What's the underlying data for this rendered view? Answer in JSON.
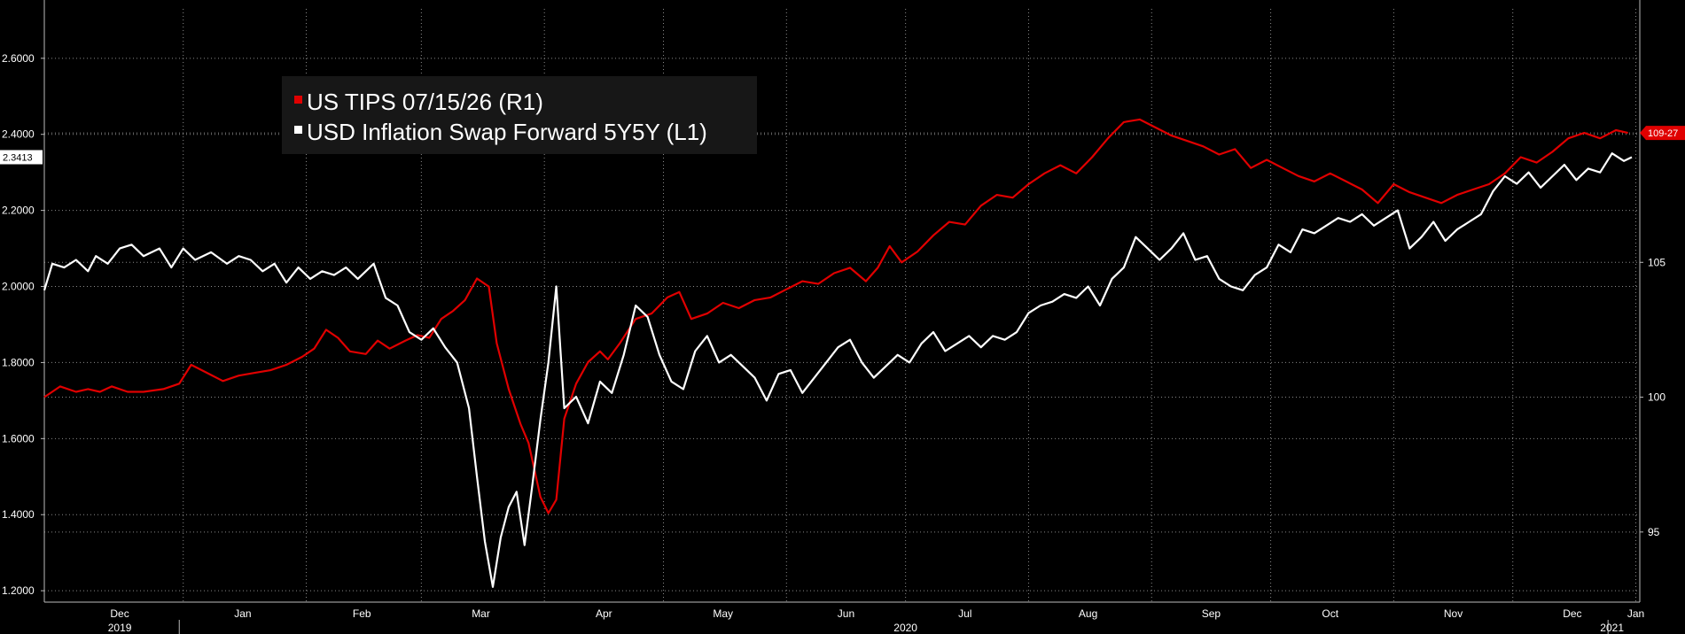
{
  "chart_data": {
    "type": "line",
    "title": "",
    "legend": {
      "placement": "top-left"
    },
    "grid": true,
    "x_range": [
      "2019-11-27",
      "2021-01-02"
    ],
    "left_axis": {
      "ticks": [
        "1.2000",
        "1.4000",
        "1.6000",
        "1.8000",
        "2.0000",
        "2.2000",
        "2.4000",
        "2.6000"
      ],
      "tick_values": [
        1.2,
        1.4,
        1.6,
        1.8,
        2.0,
        2.2,
        2.4,
        2.6
      ],
      "range": [
        1.17,
        2.73
      ],
      "last_value_tag": "2.3413"
    },
    "right_axis": {
      "ticks": [
        "95",
        "100",
        "105"
      ],
      "tick_values": [
        95,
        100,
        105
      ],
      "range": [
        92.4,
        114.4
      ],
      "last_value_tag": "109-27"
    },
    "x_axis": {
      "months": [
        {
          "label": "Dec",
          "date": "2019-12-16"
        },
        {
          "label": "Jan",
          "date": "2020-01-16"
        },
        {
          "label": "Feb",
          "date": "2020-02-15"
        },
        {
          "label": "Mar",
          "date": "2020-03-16"
        },
        {
          "label": "Apr",
          "date": "2020-04-16"
        },
        {
          "label": "May",
          "date": "2020-05-16"
        },
        {
          "label": "Jun",
          "date": "2020-06-16"
        },
        {
          "label": "Jul",
          "date": "2020-07-16"
        },
        {
          "label": "Aug",
          "date": "2020-08-16"
        },
        {
          "label": "Sep",
          "date": "2020-09-16"
        },
        {
          "label": "Oct",
          "date": "2020-10-16"
        },
        {
          "label": "Nov",
          "date": "2020-11-16"
        },
        {
          "label": "Dec",
          "date": "2020-12-16"
        },
        {
          "label": "Jan",
          "date": "2021-01-01"
        }
      ],
      "years": [
        {
          "label": "2019",
          "date": "2019-12-16"
        },
        {
          "label": "2020",
          "date": "2020-07-01"
        },
        {
          "label": "2021",
          "date": "2020-12-26"
        }
      ]
    },
    "series": [
      {
        "name": "US TIPS 07/15/26 (R1)",
        "axis": "right",
        "color": "#e00000",
        "points": [
          [
            "2019-11-27",
            100.0
          ],
          [
            "2019-12-01",
            100.4
          ],
          [
            "2019-12-05",
            100.2
          ],
          [
            "2019-12-08",
            100.3
          ],
          [
            "2019-12-11",
            100.2
          ],
          [
            "2019-12-14",
            100.4
          ],
          [
            "2019-12-18",
            100.2
          ],
          [
            "2019-12-22",
            100.2
          ],
          [
            "2019-12-27",
            100.3
          ],
          [
            "2019-12-31",
            100.5
          ],
          [
            "2020-01-03",
            101.2
          ],
          [
            "2020-01-07",
            100.9
          ],
          [
            "2020-01-11",
            100.6
          ],
          [
            "2020-01-15",
            100.8
          ],
          [
            "2020-01-19",
            100.9
          ],
          [
            "2020-01-23",
            101.0
          ],
          [
            "2020-01-27",
            101.2
          ],
          [
            "2020-01-31",
            101.5
          ],
          [
            "2020-02-03",
            101.8
          ],
          [
            "2020-02-06",
            102.5
          ],
          [
            "2020-02-09",
            102.2
          ],
          [
            "2020-02-12",
            101.7
          ],
          [
            "2020-02-16",
            101.6
          ],
          [
            "2020-02-19",
            102.1
          ],
          [
            "2020-02-22",
            101.8
          ],
          [
            "2020-02-26",
            102.1
          ],
          [
            "2020-02-29",
            102.3
          ],
          [
            "2020-03-03",
            102.2
          ],
          [
            "2020-03-06",
            102.9
          ],
          [
            "2020-03-09",
            103.2
          ],
          [
            "2020-03-12",
            103.6
          ],
          [
            "2020-03-15",
            104.4
          ],
          [
            "2020-03-18",
            104.1
          ],
          [
            "2020-03-20",
            102.0
          ],
          [
            "2020-03-23",
            100.3
          ],
          [
            "2020-03-26",
            99.0
          ],
          [
            "2020-03-28",
            98.3
          ],
          [
            "2020-03-31",
            96.3
          ],
          [
            "2020-04-02",
            95.7
          ],
          [
            "2020-04-04",
            96.2
          ],
          [
            "2020-04-06",
            99.2
          ],
          [
            "2020-04-09",
            100.5
          ],
          [
            "2020-04-12",
            101.3
          ],
          [
            "2020-04-15",
            101.7
          ],
          [
            "2020-04-17",
            101.4
          ],
          [
            "2020-04-20",
            102.0
          ],
          [
            "2020-04-24",
            102.9
          ],
          [
            "2020-04-28",
            103.1
          ],
          [
            "2020-05-02",
            103.7
          ],
          [
            "2020-05-05",
            103.9
          ],
          [
            "2020-05-08",
            102.9
          ],
          [
            "2020-05-12",
            103.1
          ],
          [
            "2020-05-16",
            103.5
          ],
          [
            "2020-05-20",
            103.3
          ],
          [
            "2020-05-24",
            103.6
          ],
          [
            "2020-05-28",
            103.7
          ],
          [
            "2020-06-01",
            104.0
          ],
          [
            "2020-06-05",
            104.3
          ],
          [
            "2020-06-09",
            104.2
          ],
          [
            "2020-06-13",
            104.6
          ],
          [
            "2020-06-17",
            104.8
          ],
          [
            "2020-06-21",
            104.3
          ],
          [
            "2020-06-24",
            104.8
          ],
          [
            "2020-06-27",
            105.6
          ],
          [
            "2020-06-30",
            105.0
          ],
          [
            "2020-07-04",
            105.4
          ],
          [
            "2020-07-08",
            106.0
          ],
          [
            "2020-07-12",
            106.5
          ],
          [
            "2020-07-16",
            106.4
          ],
          [
            "2020-07-20",
            107.1
          ],
          [
            "2020-07-24",
            107.5
          ],
          [
            "2020-07-28",
            107.4
          ],
          [
            "2020-08-01",
            107.9
          ],
          [
            "2020-08-05",
            108.3
          ],
          [
            "2020-08-09",
            108.6
          ],
          [
            "2020-08-13",
            108.3
          ],
          [
            "2020-08-17",
            108.9
          ],
          [
            "2020-08-21",
            109.6
          ],
          [
            "2020-08-25",
            110.2
          ],
          [
            "2020-08-29",
            110.3
          ],
          [
            "2020-09-02",
            110.0
          ],
          [
            "2020-09-06",
            109.7
          ],
          [
            "2020-09-10",
            109.5
          ],
          [
            "2020-09-14",
            109.3
          ],
          [
            "2020-09-18",
            109.0
          ],
          [
            "2020-09-22",
            109.2
          ],
          [
            "2020-09-26",
            108.5
          ],
          [
            "2020-09-30",
            108.8
          ],
          [
            "2020-10-04",
            108.5
          ],
          [
            "2020-10-08",
            108.2
          ],
          [
            "2020-10-12",
            108.0
          ],
          [
            "2020-10-16",
            108.3
          ],
          [
            "2020-10-20",
            108.0
          ],
          [
            "2020-10-24",
            107.7
          ],
          [
            "2020-10-28",
            107.2
          ],
          [
            "2020-11-01",
            107.9
          ],
          [
            "2020-11-05",
            107.6
          ],
          [
            "2020-11-09",
            107.4
          ],
          [
            "2020-11-13",
            107.2
          ],
          [
            "2020-11-17",
            107.5
          ],
          [
            "2020-11-21",
            107.7
          ],
          [
            "2020-11-25",
            107.9
          ],
          [
            "2020-11-29",
            108.3
          ],
          [
            "2020-12-03",
            108.9
          ],
          [
            "2020-12-07",
            108.7
          ],
          [
            "2020-12-11",
            109.1
          ],
          [
            "2020-12-15",
            109.6
          ],
          [
            "2020-12-19",
            109.8
          ],
          [
            "2020-12-23",
            109.6
          ],
          [
            "2020-12-27",
            109.9
          ],
          [
            "2020-12-30",
            109.8
          ]
        ]
      },
      {
        "name": "USD Inflation Swap Forward 5Y5Y (L1)",
        "axis": "left",
        "color": "#ffffff",
        "points": [
          [
            "2019-11-27",
            1.99
          ],
          [
            "2019-11-29",
            2.06
          ],
          [
            "2019-12-02",
            2.05
          ],
          [
            "2019-12-05",
            2.07
          ],
          [
            "2019-12-08",
            2.04
          ],
          [
            "2019-12-10",
            2.08
          ],
          [
            "2019-12-13",
            2.06
          ],
          [
            "2019-12-16",
            2.1
          ],
          [
            "2019-12-19",
            2.11
          ],
          [
            "2019-12-22",
            2.08
          ],
          [
            "2019-12-26",
            2.1
          ],
          [
            "2019-12-29",
            2.05
          ],
          [
            "2020-01-01",
            2.1
          ],
          [
            "2020-01-04",
            2.07
          ],
          [
            "2020-01-08",
            2.09
          ],
          [
            "2020-01-12",
            2.06
          ],
          [
            "2020-01-15",
            2.08
          ],
          [
            "2020-01-18",
            2.07
          ],
          [
            "2020-01-21",
            2.04
          ],
          [
            "2020-01-24",
            2.06
          ],
          [
            "2020-01-27",
            2.01
          ],
          [
            "2020-01-30",
            2.05
          ],
          [
            "2020-02-02",
            2.02
          ],
          [
            "2020-02-05",
            2.04
          ],
          [
            "2020-02-08",
            2.03
          ],
          [
            "2020-02-11",
            2.05
          ],
          [
            "2020-02-14",
            2.02
          ],
          [
            "2020-02-18",
            2.06
          ],
          [
            "2020-02-21",
            1.97
          ],
          [
            "2020-02-24",
            1.95
          ],
          [
            "2020-02-27",
            1.88
          ],
          [
            "2020-03-01",
            1.86
          ],
          [
            "2020-03-04",
            1.89
          ],
          [
            "2020-03-07",
            1.84
          ],
          [
            "2020-03-10",
            1.8
          ],
          [
            "2020-03-13",
            1.68
          ],
          [
            "2020-03-15",
            1.5
          ],
          [
            "2020-03-17",
            1.33
          ],
          [
            "2020-03-19",
            1.21
          ],
          [
            "2020-03-21",
            1.34
          ],
          [
            "2020-03-23",
            1.42
          ],
          [
            "2020-03-25",
            1.46
          ],
          [
            "2020-03-27",
            1.32
          ],
          [
            "2020-03-29",
            1.48
          ],
          [
            "2020-03-31",
            1.65
          ],
          [
            "2020-04-02",
            1.8
          ],
          [
            "2020-04-04",
            2.0
          ],
          [
            "2020-04-06",
            1.68
          ],
          [
            "2020-04-09",
            1.71
          ],
          [
            "2020-04-12",
            1.64
          ],
          [
            "2020-04-15",
            1.75
          ],
          [
            "2020-04-18",
            1.72
          ],
          [
            "2020-04-21",
            1.82
          ],
          [
            "2020-04-24",
            1.95
          ],
          [
            "2020-04-27",
            1.92
          ],
          [
            "2020-04-30",
            1.82
          ],
          [
            "2020-05-03",
            1.75
          ],
          [
            "2020-05-06",
            1.73
          ],
          [
            "2020-05-09",
            1.83
          ],
          [
            "2020-05-12",
            1.87
          ],
          [
            "2020-05-15",
            1.8
          ],
          [
            "2020-05-18",
            1.82
          ],
          [
            "2020-05-21",
            1.79
          ],
          [
            "2020-05-24",
            1.76
          ],
          [
            "2020-05-27",
            1.7
          ],
          [
            "2020-05-30",
            1.77
          ],
          [
            "2020-06-02",
            1.78
          ],
          [
            "2020-06-05",
            1.72
          ],
          [
            "2020-06-08",
            1.76
          ],
          [
            "2020-06-11",
            1.8
          ],
          [
            "2020-06-14",
            1.84
          ],
          [
            "2020-06-17",
            1.86
          ],
          [
            "2020-06-20",
            1.8
          ],
          [
            "2020-06-23",
            1.76
          ],
          [
            "2020-06-26",
            1.79
          ],
          [
            "2020-06-29",
            1.82
          ],
          [
            "2020-07-02",
            1.8
          ],
          [
            "2020-07-05",
            1.85
          ],
          [
            "2020-07-08",
            1.88
          ],
          [
            "2020-07-11",
            1.83
          ],
          [
            "2020-07-14",
            1.85
          ],
          [
            "2020-07-17",
            1.87
          ],
          [
            "2020-07-20",
            1.84
          ],
          [
            "2020-07-23",
            1.87
          ],
          [
            "2020-07-26",
            1.86
          ],
          [
            "2020-07-29",
            1.88
          ],
          [
            "2020-08-01",
            1.93
          ],
          [
            "2020-08-04",
            1.95
          ],
          [
            "2020-08-07",
            1.96
          ],
          [
            "2020-08-10",
            1.98
          ],
          [
            "2020-08-13",
            1.97
          ],
          [
            "2020-08-16",
            2.0
          ],
          [
            "2020-08-19",
            1.95
          ],
          [
            "2020-08-22",
            2.02
          ],
          [
            "2020-08-25",
            2.05
          ],
          [
            "2020-08-28",
            2.13
          ],
          [
            "2020-08-31",
            2.1
          ],
          [
            "2020-09-03",
            2.07
          ],
          [
            "2020-09-06",
            2.1
          ],
          [
            "2020-09-09",
            2.14
          ],
          [
            "2020-09-12",
            2.07
          ],
          [
            "2020-09-15",
            2.08
          ],
          [
            "2020-09-18",
            2.02
          ],
          [
            "2020-09-21",
            2.0
          ],
          [
            "2020-09-24",
            1.99
          ],
          [
            "2020-09-27",
            2.03
          ],
          [
            "2020-09-30",
            2.05
          ],
          [
            "2020-10-03",
            2.11
          ],
          [
            "2020-10-06",
            2.09
          ],
          [
            "2020-10-09",
            2.15
          ],
          [
            "2020-10-12",
            2.14
          ],
          [
            "2020-10-15",
            2.16
          ],
          [
            "2020-10-18",
            2.18
          ],
          [
            "2020-10-21",
            2.17
          ],
          [
            "2020-10-24",
            2.19
          ],
          [
            "2020-10-27",
            2.16
          ],
          [
            "2020-10-30",
            2.18
          ],
          [
            "2020-11-02",
            2.2
          ],
          [
            "2020-11-05",
            2.1
          ],
          [
            "2020-11-08",
            2.13
          ],
          [
            "2020-11-11",
            2.17
          ],
          [
            "2020-11-14",
            2.12
          ],
          [
            "2020-11-17",
            2.15
          ],
          [
            "2020-11-20",
            2.17
          ],
          [
            "2020-11-23",
            2.19
          ],
          [
            "2020-11-26",
            2.25
          ],
          [
            "2020-11-29",
            2.29
          ],
          [
            "2020-12-02",
            2.27
          ],
          [
            "2020-12-05",
            2.3
          ],
          [
            "2020-12-08",
            2.26
          ],
          [
            "2020-12-11",
            2.29
          ],
          [
            "2020-12-14",
            2.32
          ],
          [
            "2020-12-17",
            2.28
          ],
          [
            "2020-12-20",
            2.31
          ],
          [
            "2020-12-23",
            2.3
          ],
          [
            "2020-12-26",
            2.35
          ],
          [
            "2020-12-29",
            2.33
          ],
          [
            "2020-12-31",
            2.34
          ]
        ]
      }
    ]
  }
}
